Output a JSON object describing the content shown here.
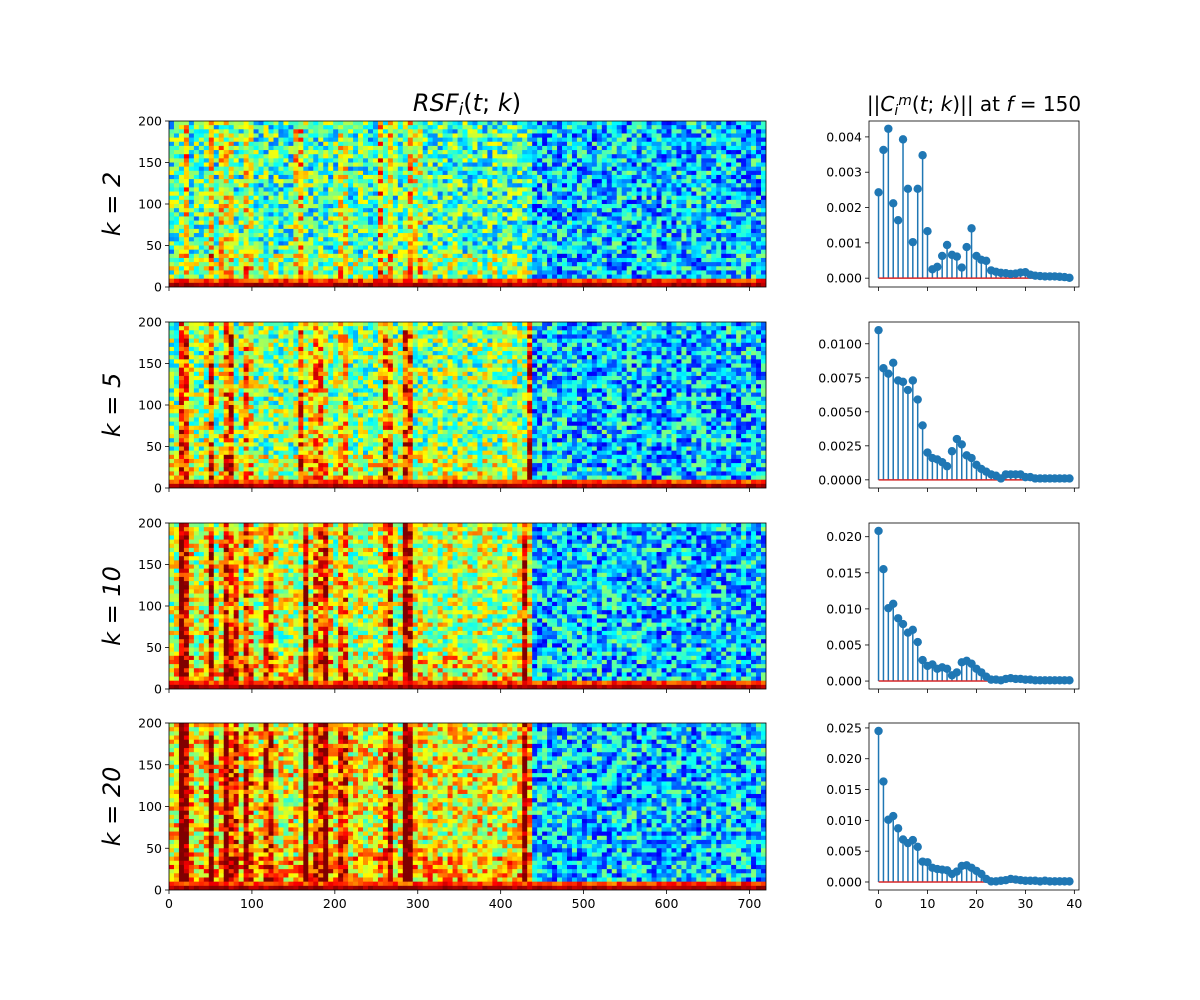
{
  "titles": {
    "left": "RSF_i(t; k)",
    "right_prefix": "||C_i^m(t; k)||",
    "right_mid": " at ",
    "right_suffix": "f = 150"
  },
  "chart_data": [
    {
      "type": "heatmap",
      "row_label": "k = 2",
      "xlim": [
        0,
        720
      ],
      "ylim": [
        0,
        200
      ],
      "xticks": [
        0,
        100,
        200,
        300,
        400,
        500,
        600,
        700
      ],
      "yticks": [
        0,
        50,
        100,
        150,
        200
      ],
      "colormap": "jet",
      "bright_columns": [
        20,
        50,
        65,
        72,
        95,
        155,
        160,
        210,
        255,
        265,
        290,
        300
      ],
      "high_energy_region": [
        0,
        440
      ]
    },
    {
      "type": "heatmap",
      "row_label": "k = 5",
      "xlim": [
        0,
        720
      ],
      "ylim": [
        0,
        200
      ],
      "xticks": [
        0,
        100,
        200,
        300,
        400,
        500,
        600,
        700
      ],
      "yticks": [
        0,
        50,
        100,
        150,
        200
      ],
      "colormap": "jet",
      "bright_columns": [
        15,
        22,
        50,
        68,
        75,
        95,
        160,
        175,
        185,
        210,
        260,
        265,
        285,
        290,
        435
      ],
      "high_energy_region": [
        0,
        440
      ]
    },
    {
      "type": "heatmap",
      "row_label": "k = 10",
      "xlim": [
        0,
        720
      ],
      "ylim": [
        0,
        200
      ],
      "xticks": [
        0,
        100,
        200,
        300,
        400,
        500,
        600,
        700
      ],
      "yticks": [
        0,
        50,
        100,
        150,
        200
      ],
      "colormap": "jet",
      "bright_columns": [
        15,
        22,
        50,
        68,
        72,
        78,
        95,
        120,
        165,
        180,
        190,
        210,
        265,
        285,
        290,
        430
      ],
      "high_energy_region": [
        0,
        440
      ]
    },
    {
      "type": "heatmap",
      "row_label": "k = 20",
      "xlim": [
        0,
        720
      ],
      "ylim": [
        0,
        200
      ],
      "xticks": [
        0,
        100,
        200,
        300,
        400,
        500,
        600,
        700
      ],
      "yticks": [
        0,
        50,
        100,
        150,
        200
      ],
      "colormap": "jet",
      "bright_columns": [
        15,
        22,
        50,
        68,
        72,
        78,
        95,
        120,
        165,
        180,
        190,
        210,
        265,
        285,
        290,
        430
      ],
      "high_energy_region": [
        0,
        440
      ]
    },
    {
      "type": "scatter",
      "subtype": "stem",
      "x": [
        0,
        1,
        2,
        3,
        4,
        5,
        6,
        7,
        8,
        9,
        10,
        11,
        12,
        13,
        14,
        15,
        16,
        17,
        18,
        19,
        20,
        21,
        22,
        23,
        24,
        25,
        26,
        27,
        28,
        29,
        30,
        31,
        32,
        33,
        34,
        35,
        36,
        37,
        38,
        39
      ],
      "values": [
        0.00243,
        0.00363,
        0.00423,
        0.00212,
        0.00164,
        0.00393,
        0.00253,
        0.00102,
        0.00253,
        0.00348,
        0.00133,
        0.00025,
        0.00032,
        0.00063,
        0.00094,
        0.00066,
        0.00061,
        0.0003,
        0.00088,
        0.00141,
        0.00063,
        0.00052,
        0.00049,
        0.00022,
        0.00018,
        0.00015,
        0.00014,
        0.00012,
        0.00013,
        0.00016,
        0.00017,
        0.0001,
        7e-05,
        6e-05,
        5e-05,
        5e-05,
        5e-05,
        4e-05,
        3e-05,
        1e-05
      ],
      "xlim": [
        -1.95,
        40.95
      ],
      "ylim": [
        -0.00025,
        0.00445
      ],
      "xticks": [
        0,
        10,
        20,
        30,
        40
      ],
      "yticks": [
        0.0,
        0.001,
        0.002,
        0.003,
        0.004
      ],
      "ytick_labels": [
        "0.000",
        "0.001",
        "0.002",
        "0.003",
        "0.004"
      ],
      "marker_color": "#1f77b4",
      "baseline_color": "#d62728"
    },
    {
      "type": "scatter",
      "subtype": "stem",
      "x": [
        0,
        1,
        2,
        3,
        4,
        5,
        6,
        7,
        8,
        9,
        10,
        11,
        12,
        13,
        14,
        15,
        16,
        17,
        18,
        19,
        20,
        21,
        22,
        23,
        24,
        25,
        26,
        27,
        28,
        29,
        30,
        31,
        32,
        33,
        34,
        35,
        36,
        37,
        38,
        39
      ],
      "values": [
        0.011,
        0.0082,
        0.0078,
        0.0086,
        0.0073,
        0.0072,
        0.0066,
        0.0073,
        0.0059,
        0.004,
        0.002,
        0.0016,
        0.0015,
        0.0013,
        0.001,
        0.0021,
        0.003,
        0.0026,
        0.0018,
        0.0016,
        0.0011,
        0.0008,
        0.0006,
        0.0004,
        0.0003,
        0.0001,
        0.0004,
        0.0004,
        0.0004,
        0.0004,
        0.0002,
        0.0002,
        0.0001,
        0.0001,
        0.0001,
        0.0001,
        0.0001,
        0.0001,
        0.0001,
        0.0001
      ],
      "xlim": [
        -1.95,
        40.95
      ],
      "ylim": [
        -0.0006,
        0.0116
      ],
      "xticks": [
        0,
        10,
        20,
        30,
        40
      ],
      "yticks": [
        0.0,
        0.0025,
        0.005,
        0.0075,
        0.01
      ],
      "ytick_labels": [
        "0.0000",
        "0.0025",
        "0.0050",
        "0.0075",
        "0.0100"
      ],
      "marker_color": "#1f77b4",
      "baseline_color": "#d62728"
    },
    {
      "type": "scatter",
      "subtype": "stem",
      "x": [
        0,
        1,
        2,
        3,
        4,
        5,
        6,
        7,
        8,
        9,
        10,
        11,
        12,
        13,
        14,
        15,
        16,
        17,
        18,
        19,
        20,
        21,
        22,
        23,
        24,
        25,
        26,
        27,
        28,
        29,
        30,
        31,
        32,
        33,
        34,
        35,
        36,
        37,
        38,
        39
      ],
      "values": [
        0.0208,
        0.0155,
        0.0101,
        0.0107,
        0.0087,
        0.0079,
        0.0067,
        0.0071,
        0.0054,
        0.0029,
        0.0021,
        0.0023,
        0.0017,
        0.0019,
        0.0017,
        0.0008,
        0.0012,
        0.0026,
        0.0028,
        0.0024,
        0.0017,
        0.0012,
        0.0006,
        0.0002,
        0.0002,
        0.0001,
        0.0003,
        0.0004,
        0.0003,
        0.0003,
        0.0002,
        0.0002,
        0.0001,
        0.0001,
        0.0001,
        0.0001,
        0.0001,
        0.0001,
        0.0001,
        0.0001
      ],
      "xlim": [
        -1.95,
        40.95
      ],
      "ylim": [
        -0.0011,
        0.0219
      ],
      "xticks": [
        0,
        10,
        20,
        30,
        40
      ],
      "yticks": [
        0.0,
        0.005,
        0.01,
        0.015,
        0.02
      ],
      "ytick_labels": [
        "0.000",
        "0.005",
        "0.010",
        "0.015",
        "0.020"
      ],
      "marker_color": "#1f77b4",
      "baseline_color": "#d62728"
    },
    {
      "type": "scatter",
      "subtype": "stem",
      "x": [
        0,
        1,
        2,
        3,
        4,
        5,
        6,
        7,
        8,
        9,
        10,
        11,
        12,
        13,
        14,
        15,
        16,
        17,
        18,
        19,
        20,
        21,
        22,
        23,
        24,
        25,
        26,
        27,
        28,
        29,
        30,
        31,
        32,
        33,
        34,
        35,
        36,
        37,
        38,
        39
      ],
      "values": [
        0.0245,
        0.0163,
        0.0101,
        0.0107,
        0.0087,
        0.0069,
        0.0063,
        0.0068,
        0.0057,
        0.0033,
        0.0032,
        0.0023,
        0.0021,
        0.002,
        0.0019,
        0.0013,
        0.0017,
        0.0026,
        0.0027,
        0.0023,
        0.0018,
        0.0013,
        0.0005,
        0.0001,
        0.0001,
        0.0002,
        0.0003,
        0.0005,
        0.0004,
        0.0003,
        0.0002,
        0.0002,
        0.0002,
        0.0001,
        0.0002,
        0.0001,
        0.0001,
        0.0001,
        0.0001,
        0.0001
      ],
      "xlim": [
        -1.95,
        40.95
      ],
      "ylim": [
        -0.0013,
        0.0258
      ],
      "xticks": [
        0,
        10,
        20,
        30,
        40
      ],
      "yticks": [
        0.0,
        0.005,
        0.01,
        0.015,
        0.02,
        0.025
      ],
      "ytick_labels": [
        "0.000",
        "0.005",
        "0.010",
        "0.015",
        "0.020",
        "0.025"
      ],
      "marker_color": "#1f77b4",
      "baseline_color": "#d62728"
    }
  ]
}
